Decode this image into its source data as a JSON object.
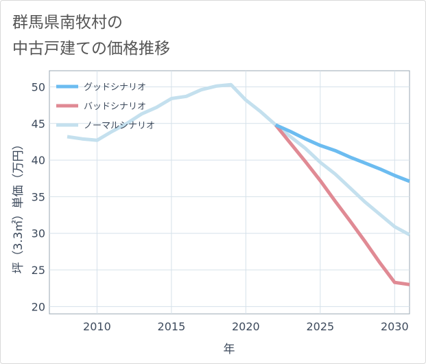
{
  "chart_data": {
    "type": "line",
    "title_lines": [
      "群馬県南牧村の",
      "中古戸建ての価格推移"
    ],
    "xlabel": "年",
    "ylabel": "坪（3.3㎡）単価（万円）",
    "xlim": [
      2006.8,
      2031
    ],
    "ylim": [
      19,
      52.2
    ],
    "x_ticks": [
      2010,
      2015,
      2020,
      2025,
      2030
    ],
    "y_ticks": [
      20,
      25,
      30,
      35,
      40,
      45,
      50
    ],
    "grid": true,
    "legend_position": "top-left",
    "series": [
      {
        "name": "グッドシナリオ",
        "color": "#6cbcf0",
        "x": [
          2022,
          2023,
          2024,
          2025,
          2026,
          2027,
          2028,
          2029,
          2030,
          2031
        ],
        "y": [
          44.8,
          43.9,
          42.9,
          42.0,
          41.3,
          40.4,
          39.6,
          38.8,
          37.9,
          37.1
        ]
      },
      {
        "name": "バッドシナリオ",
        "color": "#e08a94",
        "x": [
          2022,
          2023,
          2024,
          2025,
          2026,
          2027,
          2028,
          2029,
          2030,
          2031
        ],
        "y": [
          44.8,
          42.3,
          39.8,
          37.2,
          34.4,
          31.7,
          28.9,
          26.0,
          23.3,
          23.0
        ]
      },
      {
        "name": "ノーマルシナリオ",
        "color": "#c4e0ee",
        "x": [
          2008,
          2009,
          2010,
          2011,
          2012,
          2013,
          2014,
          2015,
          2016,
          2017,
          2018,
          2019,
          2020,
          2021,
          2022,
          2023,
          2024,
          2025,
          2026,
          2027,
          2028,
          2029,
          2030,
          2031
        ],
        "y": [
          43.2,
          42.9,
          42.7,
          43.9,
          45.0,
          46.3,
          47.2,
          48.4,
          48.7,
          49.6,
          50.1,
          50.3,
          48.2,
          46.6,
          44.8,
          43.2,
          41.6,
          39.7,
          38.1,
          36.2,
          34.3,
          32.6,
          30.9,
          29.8
        ]
      }
    ]
  }
}
